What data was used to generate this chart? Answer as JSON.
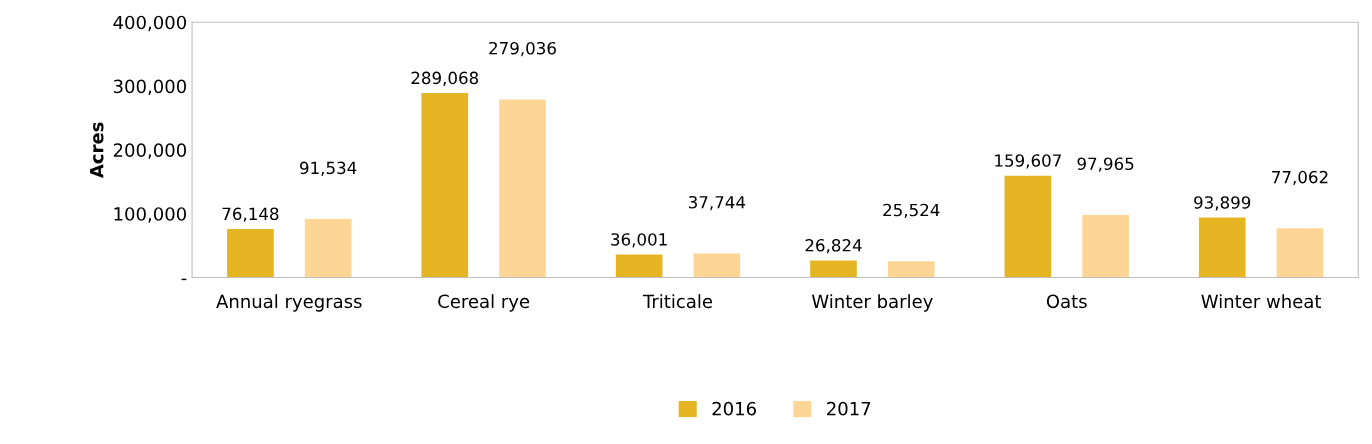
{
  "chart_data": {
    "type": "bar",
    "ylabel": "Acres",
    "categories": [
      "Annual ryegrass",
      "Cereal rye",
      "Triticale",
      "Winter barley",
      "Oats",
      "Winter wheat"
    ],
    "series": [
      {
        "name": "2016",
        "color": "#e5b523",
        "values": [
          76148,
          289068,
          36001,
          26824,
          159607,
          93899
        ],
        "value_labels": [
          "76,148",
          "289,068",
          "36,001",
          "26,824",
          "159,607",
          "93,899"
        ]
      },
      {
        "name": "2017",
        "color": "#fdd696",
        "values": [
          91534,
          279036,
          37744,
          25524,
          97965,
          77062
        ],
        "value_labels": [
          "91,534",
          "279,036",
          "37,744",
          "25,524",
          "97,965",
          "77,062"
        ]
      }
    ],
    "ylim": [
      0,
      400000
    ],
    "yticks": [
      {
        "value": 0,
        "label": "-"
      },
      {
        "value": 100000,
        "label": "100,000"
      },
      {
        "value": 200000,
        "label": "200,000"
      },
      {
        "value": 300000,
        "label": "300,000"
      },
      {
        "value": 400000,
        "label": "400,000"
      }
    ],
    "grid": false,
    "legend": "bottom"
  }
}
